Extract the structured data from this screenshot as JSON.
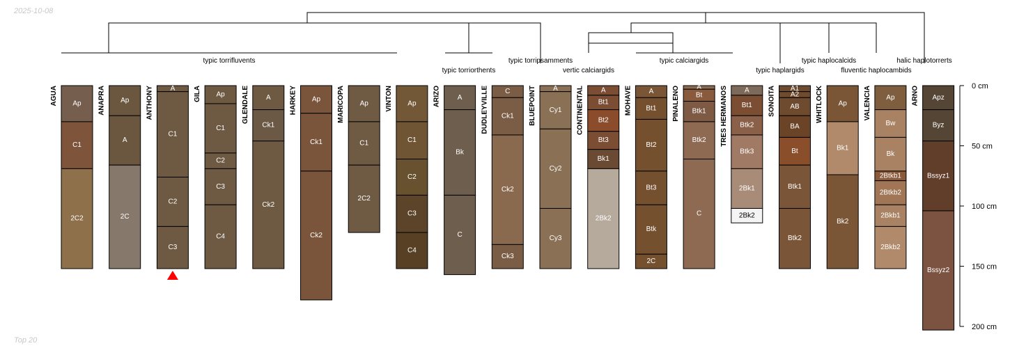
{
  "header": {
    "date": "2025-10-08"
  },
  "footer": {
    "caption": "Top 20"
  },
  "depth_axis": {
    "unit": "cm",
    "ticks": [
      0,
      50,
      100,
      150,
      200
    ],
    "labels": [
      "0 cm",
      "50 cm",
      "100 cm",
      "150 cm",
      "200 cm"
    ]
  },
  "groups": [
    "typic torrifluvents",
    "typic torriorthents",
    "typic torripsamments",
    "vertic calciargids",
    "typic calciargids",
    "typic haplargids",
    "typic haplocalcids",
    "fluventic haplocambids",
    "halic haplotorrerts"
  ],
  "marker": {
    "shape": "triangle",
    "color": "#ff0000",
    "profile": "ANTHONY"
  },
  "profiles": [
    {
      "name": "AGUA",
      "horizons": [
        {
          "name": "Ap",
          "top": 0,
          "bottom": 30,
          "color": "#755E4E"
        },
        {
          "name": "C1",
          "top": 30,
          "bottom": 69,
          "color": "#7E553A"
        },
        {
          "name": "2C2",
          "top": 69,
          "bottom": 152,
          "color": "#8E704A"
        }
      ]
    },
    {
      "name": "ANAPRA",
      "horizons": [
        {
          "name": "Ap",
          "top": 0,
          "bottom": 25,
          "color": "#6B573F"
        },
        {
          "name": "A",
          "top": 25,
          "bottom": 66,
          "color": "#6B573F"
        },
        {
          "name": "2C",
          "top": 66,
          "bottom": 152,
          "color": "#86786A"
        }
      ]
    },
    {
      "name": "ANTHONY",
      "horizons": [
        {
          "name": "A",
          "top": 0,
          "bottom": 5,
          "color": "#6E5A43"
        },
        {
          "name": "C1",
          "top": 5,
          "bottom": 76,
          "color": "#6E5A43"
        },
        {
          "name": "C2",
          "top": 76,
          "bottom": 117,
          "color": "#6E5A43"
        },
        {
          "name": "C3",
          "top": 117,
          "bottom": 152,
          "color": "#6E5A43"
        }
      ]
    },
    {
      "name": "GILA",
      "horizons": [
        {
          "name": "Ap",
          "top": 0,
          "bottom": 15,
          "color": "#6E5A43"
        },
        {
          "name": "C1",
          "top": 15,
          "bottom": 56,
          "color": "#6E5A43"
        },
        {
          "name": "C2",
          "top": 56,
          "bottom": 69,
          "color": "#6E5A43"
        },
        {
          "name": "C3",
          "top": 69,
          "bottom": 99,
          "color": "#6E5A43"
        },
        {
          "name": "C4",
          "top": 99,
          "bottom": 152,
          "color": "#6E5A43"
        }
      ]
    },
    {
      "name": "GLENDALE",
      "horizons": [
        {
          "name": "A",
          "top": 0,
          "bottom": 20,
          "color": "#6E5A43"
        },
        {
          "name": "Ck1",
          "top": 20,
          "bottom": 46,
          "color": "#6B5946"
        },
        {
          "name": "Ck2",
          "top": 46,
          "bottom": 152,
          "color": "#6E5A43"
        }
      ]
    },
    {
      "name": "HARKEY",
      "horizons": [
        {
          "name": "Ap",
          "top": 0,
          "bottom": 23,
          "color": "#7A553B"
        },
        {
          "name": "Ck1",
          "top": 23,
          "bottom": 71,
          "color": "#7A553B"
        },
        {
          "name": "Ck2",
          "top": 71,
          "bottom": 178,
          "color": "#7A553B"
        }
      ]
    },
    {
      "name": "MARICOPA",
      "horizons": [
        {
          "name": "Ap",
          "top": 0,
          "bottom": 30,
          "color": "#6F5A43"
        },
        {
          "name": "C1",
          "top": 30,
          "bottom": 66,
          "color": "#6F5A43"
        },
        {
          "name": "2C2",
          "top": 66,
          "bottom": 122,
          "color": "#6F5A43"
        }
      ]
    },
    {
      "name": "VINTON",
      "horizons": [
        {
          "name": "Ap",
          "top": 0,
          "bottom": 30,
          "color": "#735838"
        },
        {
          "name": "C1",
          "top": 30,
          "bottom": 61,
          "color": "#705534"
        },
        {
          "name": "C2",
          "top": 61,
          "bottom": 91,
          "color": "#68512F"
        },
        {
          "name": "C3",
          "top": 91,
          "bottom": 122,
          "color": "#5B4429"
        },
        {
          "name": "C4",
          "top": 122,
          "bottom": 152,
          "color": "#584024"
        }
      ]
    },
    {
      "name": "ARIZO",
      "horizons": [
        {
          "name": "A",
          "top": 0,
          "bottom": 20,
          "color": "#6E5E4E"
        },
        {
          "name": "Bk",
          "top": 20,
          "bottom": 91,
          "color": "#6E5E4E"
        },
        {
          "name": "C",
          "top": 91,
          "bottom": 157,
          "color": "#6E5E4E"
        }
      ]
    },
    {
      "name": "DUDLEYVILLE",
      "horizons": [
        {
          "name": "C",
          "top": 0,
          "bottom": 10,
          "color": "#7B5D45"
        },
        {
          "name": "Ck1",
          "top": 10,
          "bottom": 41,
          "color": "#7B5D45"
        },
        {
          "name": "Ck2",
          "top": 41,
          "bottom": 132,
          "color": "#8A6A4E"
        },
        {
          "name": "Ck3",
          "top": 132,
          "bottom": 152,
          "color": "#7B5D45"
        }
      ]
    },
    {
      "name": "BLUEPOINT",
      "horizons": [
        {
          "name": "A",
          "top": 0,
          "bottom": 5,
          "color": "#8A7055"
        },
        {
          "name": "Cy1",
          "top": 5,
          "bottom": 36,
          "color": "#8A7055"
        },
        {
          "name": "Cy2",
          "top": 36,
          "bottom": 102,
          "color": "#8A7055"
        },
        {
          "name": "Cy3",
          "top": 102,
          "bottom": 152,
          "color": "#8A7055"
        }
      ]
    },
    {
      "name": "CONTINENTAL",
      "horizons": [
        {
          "name": "A",
          "top": 0,
          "bottom": 8,
          "color": "#7B4E34"
        },
        {
          "name": "Bt1",
          "top": 8,
          "bottom": 20,
          "color": "#7B4E34"
        },
        {
          "name": "Bt2",
          "top": 20,
          "bottom": 38,
          "color": "#8A4C2A"
        },
        {
          "name": "Bt3",
          "top": 38,
          "bottom": 53,
          "color": "#7B4E34"
        },
        {
          "name": "Bk1",
          "top": 53,
          "bottom": 69,
          "color": "#6B4A34"
        },
        {
          "name": "2Bk2",
          "top": 69,
          "bottom": 152,
          "color": "#B6AA9C"
        }
      ]
    },
    {
      "name": "MOHAVE",
      "horizons": [
        {
          "name": "A",
          "top": 0,
          "bottom": 10,
          "color": "#7A5536"
        },
        {
          "name": "Bt1",
          "top": 10,
          "bottom": 28,
          "color": "#75502F"
        },
        {
          "name": "Bt2",
          "top": 28,
          "bottom": 71,
          "color": "#75502F"
        },
        {
          "name": "Bt3",
          "top": 71,
          "bottom": 99,
          "color": "#75502F"
        },
        {
          "name": "Btk",
          "top": 99,
          "bottom": 140,
          "color": "#75502F"
        },
        {
          "name": "2C",
          "top": 140,
          "bottom": 152,
          "color": "#75502F"
        }
      ]
    },
    {
      "name": "PINALENO",
      "horizons": [
        {
          "name": "A",
          "top": 0,
          "bottom": 3,
          "color": "#8A6A50"
        },
        {
          "name": "Bt",
          "top": 3,
          "bottom": 13,
          "color": "#8A5A3C"
        },
        {
          "name": "Btk1",
          "top": 13,
          "bottom": 30,
          "color": "#7E5A44"
        },
        {
          "name": "Btk2",
          "top": 30,
          "bottom": 61,
          "color": "#8F6A52"
        },
        {
          "name": "C",
          "top": 61,
          "bottom": 152,
          "color": "#8F6A52"
        }
      ]
    },
    {
      "name": "TRES HERMANOS",
      "horizons": [
        {
          "name": "A",
          "top": 0,
          "bottom": 8,
          "color": "#7E6A5A"
        },
        {
          "name": "Bt1",
          "top": 8,
          "bottom": 25,
          "color": "#7B4E34"
        },
        {
          "name": "Btk2",
          "top": 25,
          "bottom": 41,
          "color": "#8A6048"
        },
        {
          "name": "Btk3",
          "top": 41,
          "bottom": 69,
          "color": "#A07A64"
        },
        {
          "name": "2Bk1",
          "top": 69,
          "bottom": 102,
          "color": "#A88C78"
        },
        {
          "name": "2Bk2",
          "top": 102,
          "bottom": 114,
          "color": "#F4F4F4",
          "labelColor": "#000000"
        }
      ]
    },
    {
      "name": "SONOITA",
      "horizons": [
        {
          "name": "A1",
          "top": 0,
          "bottom": 5,
          "color": "#6E4A2E"
        },
        {
          "name": "A2",
          "top": 5,
          "bottom": 10,
          "color": "#6E4A2E"
        },
        {
          "name": "AB",
          "top": 10,
          "bottom": 25,
          "color": "#6E4A2E"
        },
        {
          "name": "BA",
          "top": 25,
          "bottom": 43,
          "color": "#6B4428"
        },
        {
          "name": "Bt",
          "top": 43,
          "bottom": 66,
          "color": "#8A4E2A"
        },
        {
          "name": "Btk1",
          "top": 66,
          "bottom": 102,
          "color": "#7B5538"
        },
        {
          "name": "Btk2",
          "top": 102,
          "bottom": 152,
          "color": "#7B5538"
        }
      ]
    },
    {
      "name": "WHITLOCK",
      "horizons": [
        {
          "name": "Ap",
          "top": 0,
          "bottom": 30,
          "color": "#7A5636"
        },
        {
          "name": "Bk1",
          "top": 30,
          "bottom": 74,
          "color": "#B08A6A"
        },
        {
          "name": "Bk2",
          "top": 74,
          "bottom": 152,
          "color": "#7A5636"
        }
      ]
    },
    {
      "name": "VALENCIA",
      "horizons": [
        {
          "name": "Ap",
          "top": 0,
          "bottom": 20,
          "color": "#7E5E3E"
        },
        {
          "name": "Bw",
          "top": 20,
          "bottom": 43,
          "color": "#A88262"
        },
        {
          "name": "Bk",
          "top": 43,
          "bottom": 71,
          "color": "#A88262"
        },
        {
          "name": "2Btkb1",
          "top": 71,
          "bottom": 79,
          "color": "#8A5A3A"
        },
        {
          "name": "2Btkb2",
          "top": 79,
          "bottom": 99,
          "color": "#A07656"
        },
        {
          "name": "2Bkb1",
          "top": 99,
          "bottom": 117,
          "color": "#A88262"
        },
        {
          "name": "2Bkb2",
          "top": 117,
          "bottom": 152,
          "color": "#B08A6A"
        }
      ]
    },
    {
      "name": "ARNO",
      "horizons": [
        {
          "name": "Apz",
          "top": 0,
          "bottom": 20,
          "color": "#554535"
        },
        {
          "name": "Byz",
          "top": 20,
          "bottom": 46,
          "color": "#554535"
        },
        {
          "name": "Bssyz1",
          "top": 46,
          "bottom": 104,
          "color": "#603E2A"
        },
        {
          "name": "Bssyz2",
          "top": 104,
          "bottom": 203,
          "color": "#7B5340"
        }
      ]
    }
  ]
}
